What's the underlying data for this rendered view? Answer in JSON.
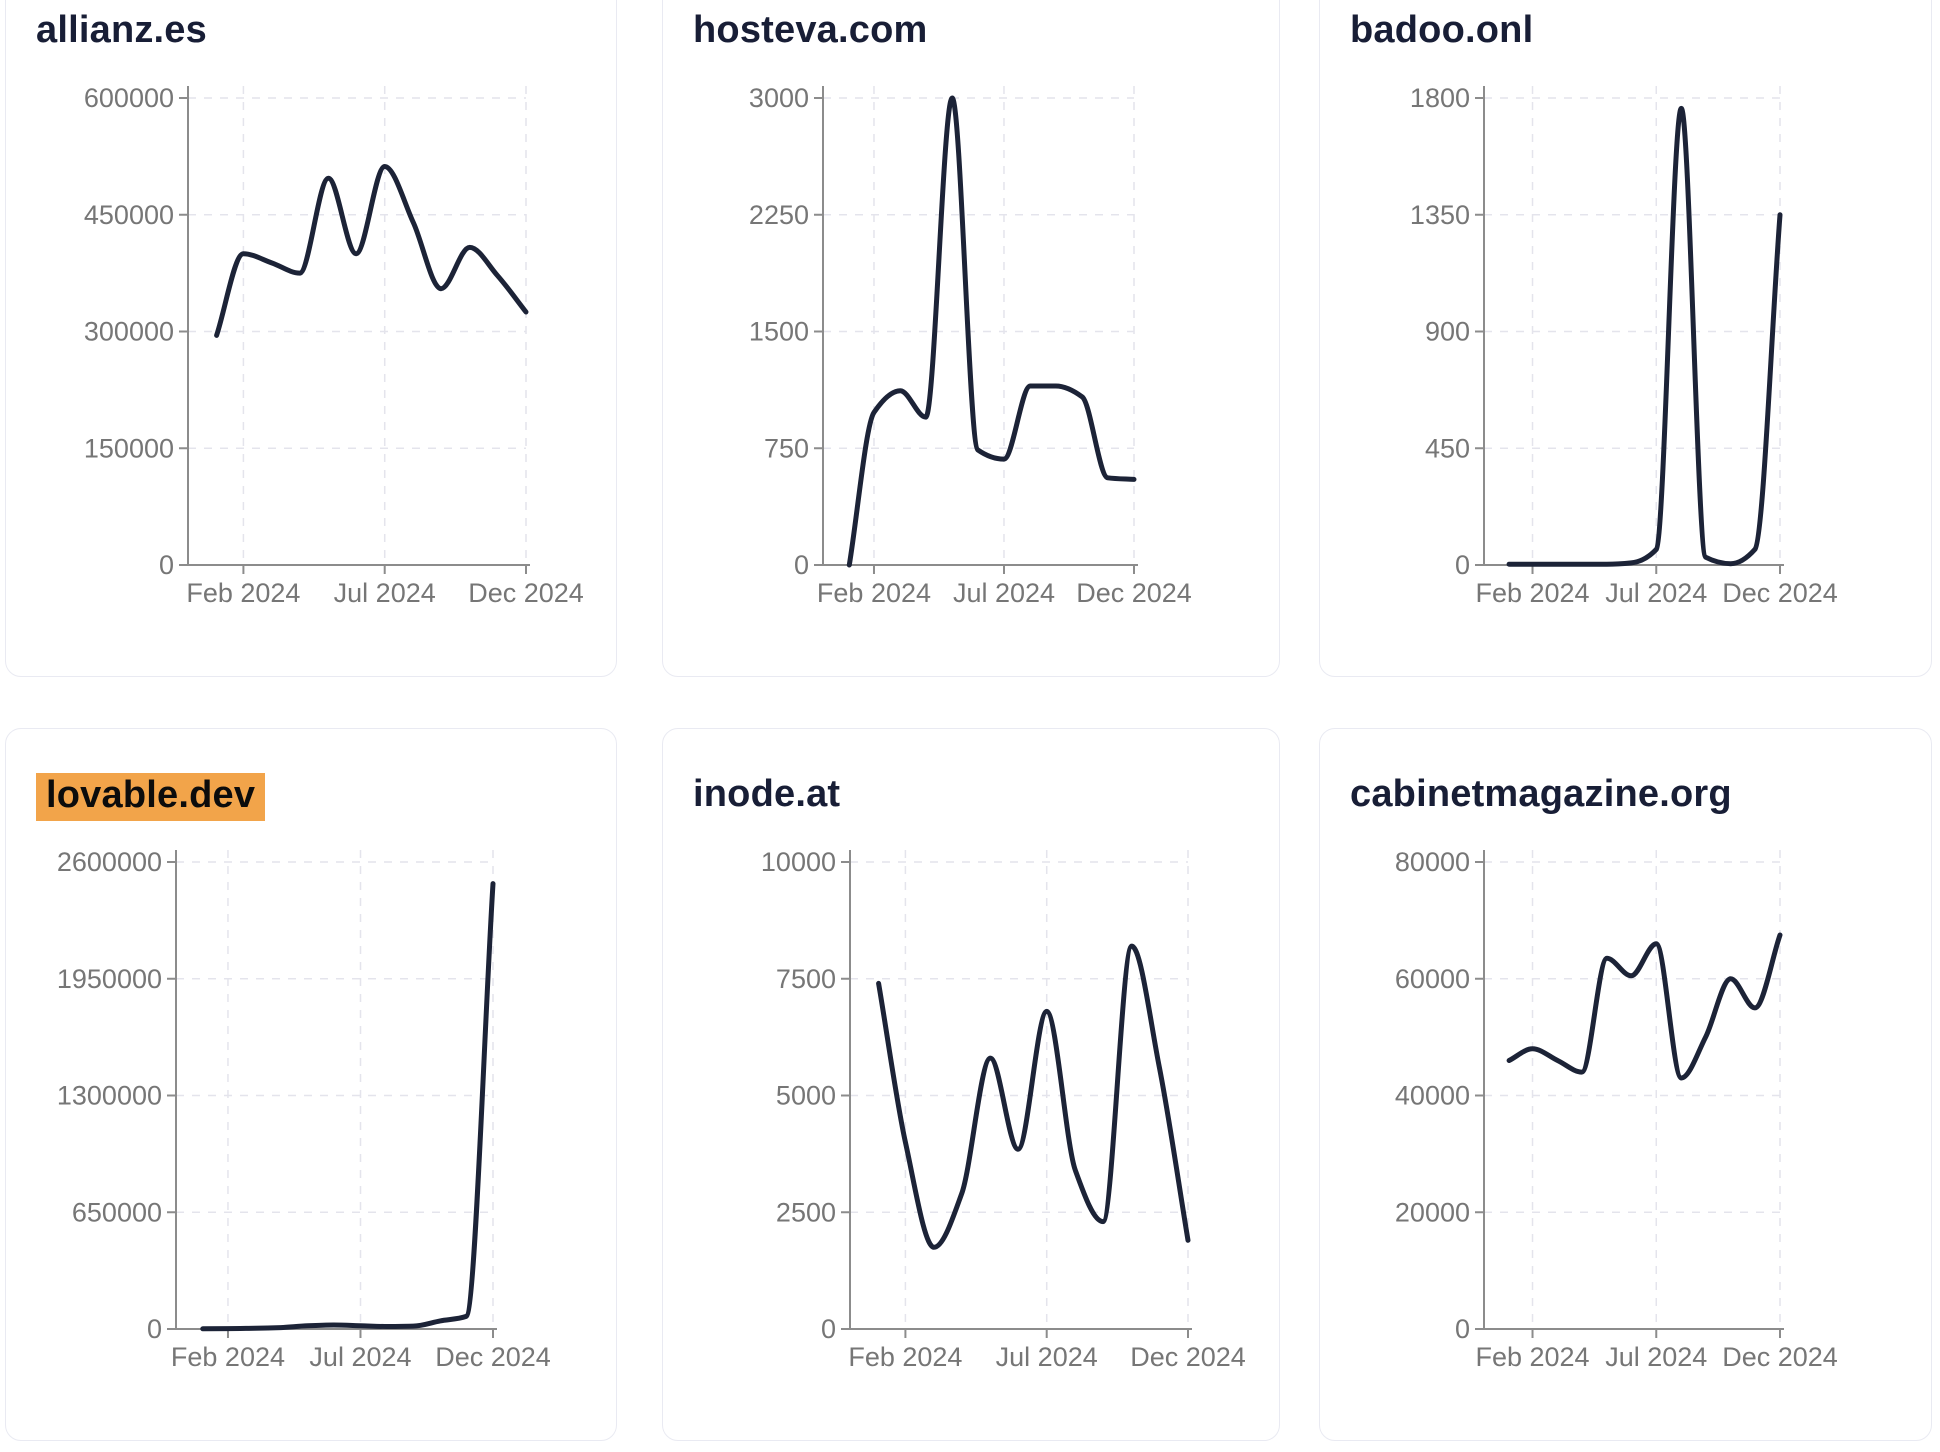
{
  "style": {
    "line_color": "#1c2337",
    "title_color": "#181e36",
    "tick_label_color": "#767676",
    "axis_color": "#8c8c8c",
    "grid_color": "#e4e4ec",
    "card_border_color": "#e9eaf2",
    "highlight_color": "#f2a44a",
    "background": "#ffffff"
  },
  "chart_data": [
    {
      "type": "line",
      "title": "allianz.es",
      "title_highlighted": false,
      "x": [
        "2024-01",
        "2024-02",
        "2024-03",
        "2024-04",
        "2024-05",
        "2024-06",
        "2024-07",
        "2024-08",
        "2024-09",
        "2024-10",
        "2024-11",
        "2024-12"
      ],
      "values": [
        295000,
        400000,
        388000,
        375000,
        497000,
        400000,
        512000,
        440000,
        355000,
        408000,
        372000,
        325000
      ],
      "x_tick_labels": [
        "Feb 2024",
        "Jul 2024",
        "Dec 2024"
      ],
      "x_tick_month_index": [
        1,
        6,
        11
      ],
      "y_ticks": [
        0,
        150000,
        300000,
        450000,
        600000
      ],
      "ylim": [
        0,
        600000
      ],
      "grid": true,
      "legend": false
    },
    {
      "type": "line",
      "title": "hosteva.com",
      "title_highlighted": false,
      "x": [
        "2024-01",
        "2024-02",
        "2024-03",
        "2024-04",
        "2024-05",
        "2024-06",
        "2024-07",
        "2024-08",
        "2024-09",
        "2024-10",
        "2024-11",
        "2024-12"
      ],
      "values": [
        0,
        980,
        1120,
        950,
        3000,
        740,
        680,
        1150,
        1150,
        1080,
        560,
        550
      ],
      "x_tick_labels": [
        "Feb 2024",
        "Jul 2024",
        "Dec 2024"
      ],
      "x_tick_month_index": [
        1,
        6,
        11
      ],
      "y_ticks": [
        0,
        750,
        1500,
        2250,
        3000
      ],
      "ylim": [
        0,
        3000
      ],
      "grid": true,
      "legend": false
    },
    {
      "type": "line",
      "title": "badoo.onl",
      "title_highlighted": false,
      "x": [
        "2024-01",
        "2024-02",
        "2024-03",
        "2024-04",
        "2024-05",
        "2024-06",
        "2024-07",
        "2024-08",
        "2024-09",
        "2024-10",
        "2024-11",
        "2024-12"
      ],
      "values": [
        3,
        3,
        3,
        3,
        3,
        8,
        60,
        1760,
        30,
        5,
        60,
        1350
      ],
      "x_tick_labels": [
        "Feb 2024",
        "Jul 2024",
        "Dec 2024"
      ],
      "x_tick_month_index": [
        1,
        6,
        11
      ],
      "y_ticks": [
        0,
        450,
        900,
        1350,
        1800
      ],
      "ylim": [
        0,
        1800
      ],
      "grid": true,
      "legend": false
    },
    {
      "type": "line",
      "title": "lovable.dev",
      "title_highlighted": true,
      "x": [
        "2024-01",
        "2024-02",
        "2024-03",
        "2024-04",
        "2024-05",
        "2024-06",
        "2024-07",
        "2024-08",
        "2024-09",
        "2024-10",
        "2024-11",
        "2024-12"
      ],
      "values": [
        1000,
        2000,
        4000,
        8000,
        18000,
        22000,
        18000,
        14000,
        16000,
        45000,
        70000,
        2480000
      ],
      "x_tick_labels": [
        "Feb 2024",
        "Jul 2024",
        "Dec 2024"
      ],
      "x_tick_month_index": [
        1,
        6,
        11
      ],
      "y_ticks": [
        0,
        650000,
        1300000,
        1950000,
        2600000
      ],
      "ylim": [
        0,
        2600000
      ],
      "grid": true,
      "legend": false
    },
    {
      "type": "line",
      "title": "inode.at",
      "title_highlighted": false,
      "x": [
        "2024-01",
        "2024-02",
        "2024-03",
        "2024-04",
        "2024-05",
        "2024-06",
        "2024-07",
        "2024-08",
        "2024-09",
        "2024-10",
        "2024-11",
        "2024-12"
      ],
      "values": [
        7400,
        4000,
        1750,
        2900,
        5800,
        3850,
        6800,
        3400,
        2300,
        8200,
        5600,
        1900
      ],
      "x_tick_labels": [
        "Feb 2024",
        "Jul 2024",
        "Dec 2024"
      ],
      "x_tick_month_index": [
        1,
        6,
        11
      ],
      "y_ticks": [
        0,
        2500,
        5000,
        7500,
        10000
      ],
      "ylim": [
        0,
        10000
      ],
      "grid": true,
      "legend": false
    },
    {
      "type": "line",
      "title": "cabinetmagazine.org",
      "title_highlighted": false,
      "x": [
        "2024-01",
        "2024-02",
        "2024-03",
        "2024-04",
        "2024-05",
        "2024-06",
        "2024-07",
        "2024-08",
        "2024-09",
        "2024-10",
        "2024-11",
        "2024-12"
      ],
      "values": [
        46000,
        48000,
        46000,
        44000,
        63500,
        60500,
        66000,
        43000,
        50000,
        60000,
        55000,
        67500
      ],
      "x_tick_labels": [
        "Feb 2024",
        "Jul 2024",
        "Dec 2024"
      ],
      "x_tick_month_index": [
        1,
        6,
        11
      ],
      "y_ticks": [
        0,
        20000,
        40000,
        60000,
        80000
      ],
      "ylim": [
        0,
        80000
      ],
      "grid": true,
      "legend": false
    }
  ]
}
